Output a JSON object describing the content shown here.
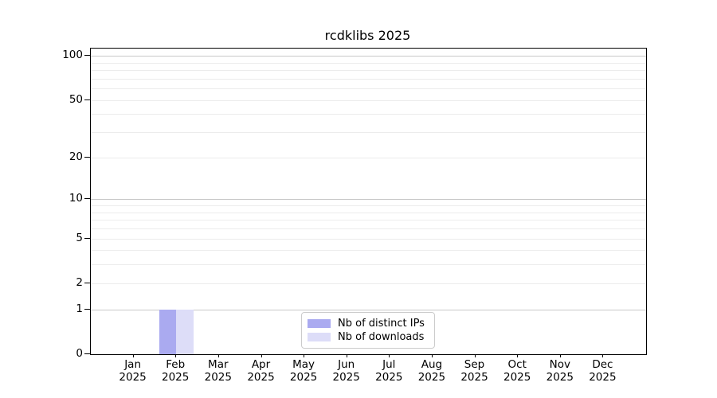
{
  "chart_data": {
    "type": "bar",
    "title": "rcdklibs 2025",
    "categories": [
      "Jan 2025",
      "Feb 2025",
      "Mar 2025",
      "Apr 2025",
      "May 2025",
      "Jun 2025",
      "Jul 2025",
      "Aug 2025",
      "Sep 2025",
      "Oct 2025",
      "Nov 2025",
      "Dec 2025"
    ],
    "series": [
      {
        "name": "Nb of distinct IPs",
        "color": "#aaaaf0",
        "values": [
          0,
          1,
          0,
          0,
          0,
          0,
          0,
          0,
          0,
          0,
          0,
          0
        ]
      },
      {
        "name": "Nb of downloads",
        "color": "#ddddf8",
        "values": [
          0,
          1,
          0,
          0,
          0,
          0,
          0,
          0,
          0,
          0,
          0,
          0
        ]
      }
    ],
    "xlabel": "",
    "ylabel": "",
    "yscale": "log1p",
    "ylim": [
      0,
      112
    ],
    "yticks": [
      0,
      1,
      2,
      5,
      10,
      20,
      50,
      100
    ],
    "grid": {
      "major_values": [
        1,
        10,
        100
      ],
      "minor_values": [
        2,
        3,
        4,
        5,
        6,
        7,
        8,
        9,
        20,
        30,
        40,
        50,
        60,
        70,
        80,
        90
      ],
      "major_color": "#c8c8c8",
      "minor_color": "#ececec"
    },
    "legend": {
      "position": "lower center",
      "entries": [
        "Nb of distinct IPs",
        "Nb of downloads"
      ]
    }
  }
}
